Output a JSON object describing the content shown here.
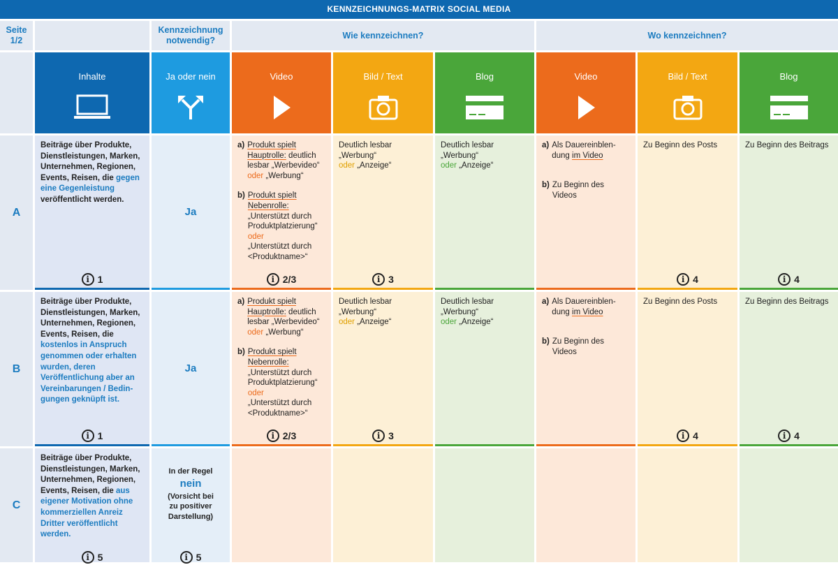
{
  "title": "KENNZEICHNUNGS-MATRIX SOCIAL MEDIA",
  "header": {
    "page": "Seite 1/2",
    "need": "Kennzeichnung notwendig?",
    "how": "Wie kennzeichnen?",
    "where": "Wo kennzeichnen?"
  },
  "categories": [
    {
      "label": "Inhalte",
      "icon": "laptop-icon"
    },
    {
      "label": "Ja oder nein",
      "icon": "fork-arrow-icon"
    },
    {
      "label": "Video",
      "icon": "play-icon"
    },
    {
      "label": "Bild / Text",
      "icon": "camera-icon"
    },
    {
      "label": "Blog",
      "icon": "blog-card-icon"
    },
    {
      "label": "Video",
      "icon": "play-icon"
    },
    {
      "label": "Bild / Text",
      "icon": "camera-icon"
    },
    {
      "label": "Blog",
      "icon": "blog-card-icon"
    }
  ],
  "colors": {
    "title_bar": "#0e68b0",
    "inhalte": "#0e68b0",
    "ja_nein": "#1e9be0",
    "video": "#ec6b1c",
    "bild_text": "#f3a712",
    "blog": "#4aa63a",
    "header_bg": "#e3e9f2",
    "accent_text": "#1c7cc0"
  },
  "rows": [
    {
      "id": "A",
      "content_pre": "Beiträge über Produkte, Dienstleistungen, Marken, Unternehmen, Regionen, Events, Reisen, die ",
      "content_hl": "gegen eine Gegen­leistung",
      "content_post": " veröffentlicht werden.",
      "decision": "Ja",
      "video_a_label": "a)",
      "video_a_ul": "Produkt spielt Hauptrolle:",
      "video_a_text": " deutlich lesbar „Werbevideo“",
      "video_a_or": "oder",
      "video_a_text2": " „Werbung“",
      "video_b_label": "b)",
      "video_b_ul": "Produkt spielt Nebenrolle:",
      "video_b_text": "„Unterstützt durch Produktplatzierung“",
      "video_b_or": "oder",
      "video_b_text2": "„Unterstützt durch <Produktname>“",
      "bild_text": "Deutlich lesbar „Werbung“",
      "bild_or": "oder",
      "bild_text2": " „Anzeige“",
      "blog_text": "Deutlich lesbar „Werbung“",
      "blog_or": "oder",
      "blog_text2": " „Anzeige“",
      "where_video_a_label": "a)",
      "where_video_a": "Als Dauereinblen­dung ",
      "where_video_a_ul": "im Video",
      "where_video_b_label": "b)",
      "where_video_b": "Zu Beginn des Videos",
      "where_bild": "Zu Beginn des Posts",
      "where_blog": "Zu Beginn des Beitrags",
      "refs": [
        "1",
        "",
        "2/3",
        "3",
        "",
        "",
        "4",
        "4"
      ]
    },
    {
      "id": "B",
      "content_pre": "Beiträge über Produkte, Dienstleistungen, Marken, Unternehmen, Regionen, Events, Reisen, die ",
      "content_hl": "kostenlos in An­spruch genommen oder erhalten wurden, deren Veröffentlichung aber an Vereinbarungen / Bedin­gungen geknüpft ist.",
      "content_post": "",
      "decision": "Ja",
      "video_a_label": "a)",
      "video_a_ul": "Produkt spielt Hauptrolle:",
      "video_a_text": " deutlich lesbar „Werbevideo“",
      "video_a_or": "oder",
      "video_a_text2": " „Werbung“",
      "video_b_label": "b)",
      "video_b_ul": "Produkt spielt Nebenrolle:",
      "video_b_text": "„Unterstützt durch Produktplatzierung“",
      "video_b_or": "oder",
      "video_b_text2": "„Unterstützt durch <Produktname>“",
      "bild_text": "Deutlich lesbar „Werbung“",
      "bild_or": "oder",
      "bild_text2": " „Anzeige“",
      "blog_text": "Deutlich lesbar „Werbung“",
      "blog_or": "oder",
      "blog_text2": " „Anzeige“",
      "where_video_a_label": "a)",
      "where_video_a": "Als Dauereinblen­dung ",
      "where_video_a_ul": "im Video",
      "where_video_b_label": "b)",
      "where_video_b": "Zu Beginn des Videos",
      "where_bild": "Zu Beginn des Posts",
      "where_blog": "Zu Beginn des Beitrags",
      "refs": [
        "1",
        "",
        "2/3",
        "3",
        "",
        "",
        "4",
        "4"
      ]
    },
    {
      "id": "C",
      "content_pre": "Beiträge über Produkte, Dienstleistungen, Marken, Unternehmen, Regionen, Events, Reisen, die ",
      "content_hl": "aus eigener Motiva­tion ohne kommerziellen Anreiz Dritter veröffent­licht werden.",
      "content_post": "",
      "decision_pre": "In der Regel",
      "decision": "nein",
      "decision_note": "(Vorsicht bei zu positiver Darstellung)",
      "refs": [
        "5",
        "5"
      ]
    }
  ]
}
